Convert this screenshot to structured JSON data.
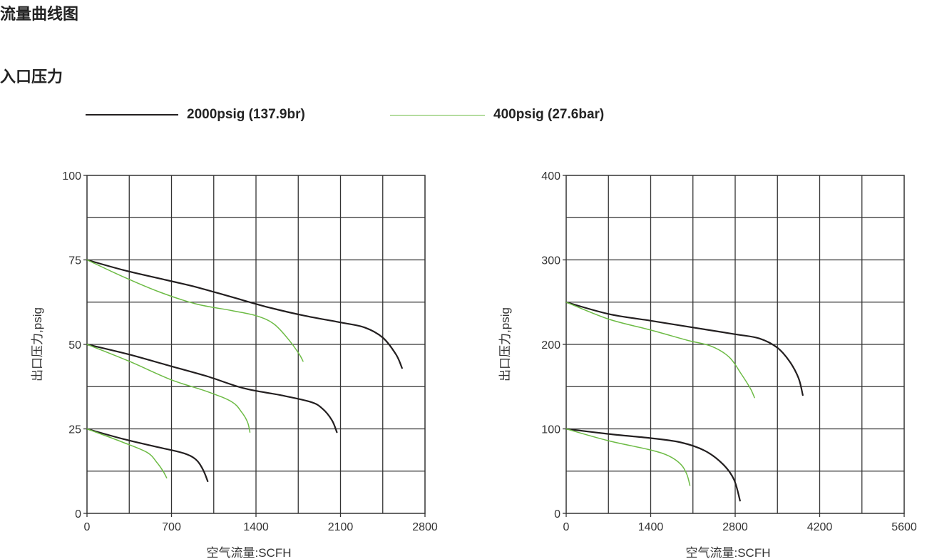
{
  "headings": {
    "title": "流量曲线图",
    "subtitle": "入口压力"
  },
  "legend": [
    {
      "label": "2000psig (137.9br)",
      "color": "#231f20"
    },
    {
      "label": "400psig (27.6bar)",
      "color": "#6dbb45"
    }
  ],
  "chart_data": [
    {
      "type": "line",
      "xlabel": "空气流量:SCFH",
      "ylabel": "出口压力,psig",
      "xlim": [
        0,
        2800
      ],
      "ylim": [
        0,
        100
      ],
      "xticks": [
        "0",
        "700",
        "1400",
        "2100",
        "2800"
      ],
      "yticks": [
        "0",
        "25",
        "50",
        "75",
        "100"
      ],
      "grid": true,
      "series": [
        {
          "name": "2000psig (137.9br)",
          "color": "#231f20",
          "points": [
            [
              0,
              75
            ],
            [
              300,
              72
            ],
            [
              600,
              69.5
            ],
            [
              900,
              67
            ],
            [
              1200,
              64
            ],
            [
              1500,
              61
            ],
            [
              1800,
              58.5
            ],
            [
              2100,
              56.5
            ],
            [
              2300,
              55
            ],
            [
              2450,
              52
            ],
            [
              2560,
              47
            ],
            [
              2610,
              43
            ]
          ]
        },
        {
          "name": "400psig (27.6bar)",
          "color": "#6dbb45",
          "points": [
            [
              0,
              75
            ],
            [
              300,
              70
            ],
            [
              600,
              65.5
            ],
            [
              900,
              62
            ],
            [
              1200,
              60
            ],
            [
              1400,
              58.5
            ],
            [
              1550,
              56
            ],
            [
              1680,
              51
            ],
            [
              1760,
              47
            ],
            [
              1790,
              45
            ]
          ]
        },
        {
          "name": "2000psig (137.9br)",
          "color": "#231f20",
          "points": [
            [
              0,
              50
            ],
            [
              350,
              47
            ],
            [
              700,
              43.5
            ],
            [
              1000,
              40.5
            ],
            [
              1300,
              37
            ],
            [
              1600,
              35
            ],
            [
              1850,
              33
            ],
            [
              1950,
              31
            ],
            [
              2030,
              27.5
            ],
            [
              2070,
              24
            ]
          ]
        },
        {
          "name": "400psig (27.6bar)",
          "color": "#6dbb45",
          "points": [
            [
              0,
              50
            ],
            [
              350,
              45
            ],
            [
              700,
              39.5
            ],
            [
              1000,
              36
            ],
            [
              1200,
              33
            ],
            [
              1280,
              30
            ],
            [
              1330,
              27
            ],
            [
              1350,
              24
            ]
          ]
        },
        {
          "name": "2000psig (137.9br)",
          "color": "#231f20",
          "points": [
            [
              0,
              25
            ],
            [
              300,
              22
            ],
            [
              600,
              19.5
            ],
            [
              800,
              17.8
            ],
            [
              900,
              16
            ],
            [
              960,
              13
            ],
            [
              1000,
              9.5
            ]
          ]
        },
        {
          "name": "400psig (27.6bar)",
          "color": "#6dbb45",
          "points": [
            [
              0,
              25
            ],
            [
              300,
              21
            ],
            [
              500,
              18
            ],
            [
              580,
              15
            ],
            [
              630,
              12.5
            ],
            [
              660,
              10.5
            ]
          ]
        }
      ]
    },
    {
      "type": "line",
      "xlabel": "空气流量:SCFH",
      "ylabel": "出口压力,psig",
      "xlim": [
        0,
        5600
      ],
      "ylim": [
        0,
        400
      ],
      "xticks": [
        "0",
        "1400",
        "2800",
        "4200",
        "5600"
      ],
      "yticks": [
        "0",
        "100",
        "200",
        "300",
        "400"
      ],
      "grid": true,
      "series": [
        {
          "name": "2000psig (137.9br)",
          "color": "#231f20",
          "points": [
            [
              0,
              250
            ],
            [
              700,
              236
            ],
            [
              1400,
              228
            ],
            [
              2100,
              220
            ],
            [
              2800,
              212
            ],
            [
              3200,
              207
            ],
            [
              3500,
              196
            ],
            [
              3700,
              180
            ],
            [
              3850,
              160
            ],
            [
              3920,
              140
            ]
          ]
        },
        {
          "name": "400psig (27.6bar)",
          "color": "#6dbb45",
          "points": [
            [
              0,
              250
            ],
            [
              700,
              230
            ],
            [
              1400,
              217
            ],
            [
              2000,
              205
            ],
            [
              2400,
              198
            ],
            [
              2700,
              185
            ],
            [
              2900,
              165
            ],
            [
              3050,
              148
            ],
            [
              3120,
              137
            ]
          ]
        },
        {
          "name": "2000psig (137.9br)",
          "color": "#231f20",
          "points": [
            [
              0,
              100
            ],
            [
              700,
              94
            ],
            [
              1400,
              89
            ],
            [
              1900,
              84
            ],
            [
              2300,
              74
            ],
            [
              2600,
              58
            ],
            [
              2780,
              40
            ],
            [
              2880,
              15
            ]
          ]
        },
        {
          "name": "400psig (27.6bar)",
          "color": "#6dbb45",
          "points": [
            [
              0,
              100
            ],
            [
              700,
              86
            ],
            [
              1400,
              75
            ],
            [
              1700,
              68
            ],
            [
              1900,
              58
            ],
            [
              2000,
              46
            ],
            [
              2050,
              33
            ]
          ]
        }
      ]
    }
  ]
}
